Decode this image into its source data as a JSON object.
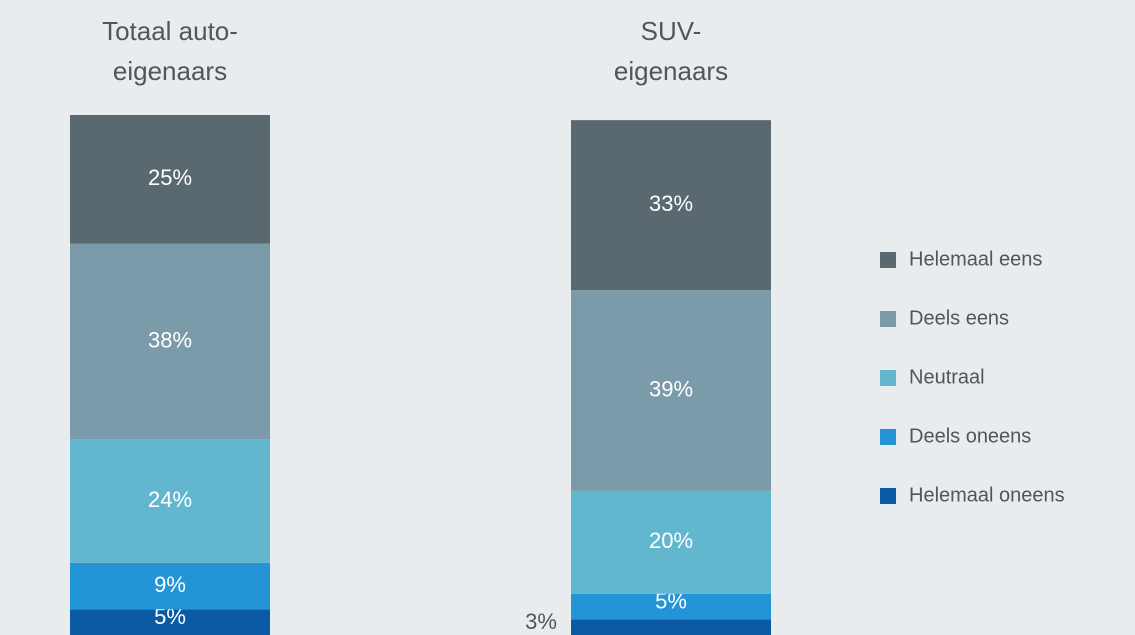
{
  "chart_data": {
    "type": "stacked_bar",
    "categories": [
      "Totaal auto-\neigenaars",
      "SUV-\neigenaars"
    ],
    "ylim": [
      0,
      101
    ],
    "series": [
      {
        "name": "Helemaal oneens",
        "color": "#0b5aa4",
        "values": [
          5,
          3
        ],
        "value_labels": [
          "5%",
          "3%"
        ]
      },
      {
        "name": "Deels oneens",
        "color": "#2394d6",
        "values": [
          9,
          5
        ],
        "value_labels": [
          "9%",
          "5%"
        ]
      },
      {
        "name": "Neutraal",
        "color": "#62b7ce",
        "values": [
          24,
          20
        ],
        "value_labels": [
          "24%",
          "20%"
        ]
      },
      {
        "name": "Deels eens",
        "color": "#7b9aaa",
        "values": [
          38,
          39
        ],
        "value_labels": [
          "38%",
          "39%"
        ]
      },
      {
        "name": "Helemaal eens",
        "color": "#5a6870",
        "values": [
          25,
          33
        ],
        "value_labels": [
          "25%",
          "33%"
        ]
      }
    ],
    "legend": "right"
  }
}
